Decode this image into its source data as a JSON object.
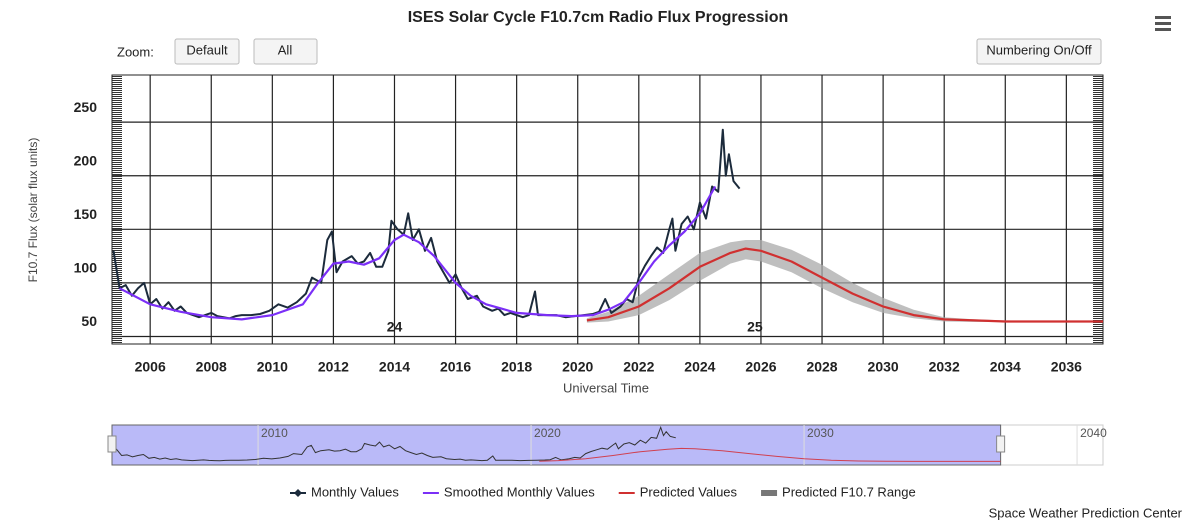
{
  "chart_data": {
    "type": "line",
    "title": "ISES Solar Cycle F10.7cm Radio Flux Progression",
    "zoom_label": "Zoom:",
    "buttons": [
      "Default",
      "All",
      "Numbering On/Off"
    ],
    "xlabel": "Universal Time",
    "ylabel": "F10.7 Flux (solar flux units)",
    "xlim": [
      2004.75,
      2037.2
    ],
    "xticks": [
      2006,
      2008,
      2010,
      2012,
      2014,
      2016,
      2018,
      2020,
      2022,
      2024,
      2026,
      2028,
      2030,
      2032,
      2034,
      2036
    ],
    "ylim": [
      43,
      294
    ],
    "yticks": [
      50,
      100,
      150,
      200,
      250
    ],
    "grid": true,
    "annotations": [
      {
        "text": "24",
        "x": 2014,
        "y": 58
      },
      {
        "text": "25",
        "x": 2025.8,
        "y": 58
      }
    ],
    "series": [
      {
        "name": "Monthly Values",
        "color": "#1c2b3c",
        "x": [
          2004.8,
          2005.0,
          2005.2,
          2005.4,
          2005.6,
          2005.8,
          2006.0,
          2006.2,
          2006.4,
          2006.6,
          2006.8,
          2007.0,
          2007.2,
          2007.4,
          2007.6,
          2007.8,
          2008.0,
          2008.2,
          2008.4,
          2008.6,
          2008.8,
          2009.0,
          2009.3,
          2009.6,
          2009.9,
          2010.2,
          2010.5,
          2010.8,
          2011.1,
          2011.3,
          2011.6,
          2011.8,
          2011.95,
          2012.1,
          2012.3,
          2012.6,
          2012.8,
          2013.0,
          2013.2,
          2013.4,
          2013.6,
          2013.8,
          2013.9,
          2014.1,
          2014.3,
          2014.45,
          2014.6,
          2014.8,
          2015.0,
          2015.2,
          2015.4,
          2015.6,
          2015.8,
          2016.0,
          2016.2,
          2016.4,
          2016.7,
          2016.9,
          2017.2,
          2017.4,
          2017.6,
          2017.8,
          2018.0,
          2018.2,
          2018.4,
          2018.6,
          2018.7,
          2019.0,
          2019.3,
          2019.6,
          2019.9,
          2020.2,
          2020.5,
          2020.7,
          2020.9,
          2021.1,
          2021.4,
          2021.6,
          2021.8,
          2022.0,
          2022.2,
          2022.4,
          2022.6,
          2022.8,
          2023.0,
          2023.1,
          2023.2,
          2023.4,
          2023.6,
          2023.8,
          2024.0,
          2024.2,
          2024.4,
          2024.6,
          2024.75,
          2024.85,
          2024.95,
          2025.1,
          2025.3
        ],
        "values": [
          130,
          95,
          98,
          88,
          95,
          100,
          80,
          85,
          76,
          82,
          74,
          78,
          72,
          70,
          68,
          70,
          72,
          69,
          68,
          67,
          69,
          70,
          70,
          71,
          74,
          80,
          77,
          82,
          90,
          105,
          100,
          140,
          148,
          110,
          120,
          125,
          118,
          120,
          128,
          115,
          115,
          130,
          158,
          150,
          145,
          165,
          140,
          150,
          130,
          142,
          120,
          110,
          100,
          108,
          95,
          85,
          88,
          78,
          74,
          76,
          70,
          72,
          70,
          68,
          70,
          92,
          70,
          70,
          70,
          68,
          69,
          70,
          71,
          73,
          85,
          72,
          78,
          85,
          82,
          105,
          116,
          125,
          133,
          128,
          150,
          160,
          130,
          155,
          162,
          150,
          175,
          160,
          190,
          185,
          243,
          200,
          220,
          195,
          188
        ]
      },
      {
        "name": "Smoothed Monthly Values",
        "color": "#7b2ff7",
        "x": [
          2005,
          2006,
          2007,
          2008,
          2009,
          2010,
          2011,
          2011.5,
          2012,
          2012.5,
          2013,
          2013.5,
          2014,
          2014.3,
          2014.8,
          2015.3,
          2016,
          2016.5,
          2017,
          2017.5,
          2018,
          2019,
          2019.8,
          2020.5,
          2021,
          2021.5,
          2022,
          2022.5,
          2023,
          2023.5,
          2024,
          2024.5
        ],
        "values": [
          95,
          80,
          73,
          68,
          66,
          70,
          80,
          100,
          118,
          120,
          117,
          123,
          140,
          145,
          138,
          125,
          100,
          88,
          80,
          76,
          72,
          70,
          69,
          70,
          75,
          82,
          100,
          120,
          135,
          148,
          165,
          190
        ]
      },
      {
        "name": "Predicted Values",
        "color": "#d03030",
        "x": [
          2020.3,
          2021,
          2022,
          2023,
          2024,
          2025,
          2025.5,
          2026,
          2027,
          2028,
          2029,
          2030,
          2031,
          2032,
          2033,
          2034,
          2035,
          2036,
          2037.2
        ],
        "values": [
          65,
          68,
          78,
          95,
          115,
          128,
          132,
          130,
          120,
          105,
          90,
          78,
          70,
          66,
          65,
          64,
          64,
          64,
          64
        ]
      },
      {
        "name": "Predicted F10.7 Range",
        "color": "#aaaaaa",
        "x": [
          2020.3,
          2021,
          2022,
          2023,
          2024,
          2025,
          2025.5,
          2026,
          2027,
          2028,
          2029,
          2030,
          2031,
          2032,
          2033,
          2034,
          2035,
          2036,
          2037.2
        ],
        "low": [
          63,
          64,
          70,
          84,
          102,
          118,
          122,
          120,
          110,
          95,
          82,
          72,
          67,
          64,
          63.5,
          63.5,
          63.5,
          63.5,
          63.5
        ],
        "high": [
          67,
          73,
          88,
          108,
          128,
          138,
          140,
          140,
          131,
          117,
          100,
          86,
          75,
          68,
          66,
          65,
          64.5,
          64.5,
          64.5
        ]
      }
    ],
    "navigator": {
      "xlim": [
        2004.65,
        2040.95
      ],
      "xticks": [
        2010,
        2020,
        2030,
        2040
      ],
      "ylim": [
        45,
        255
      ],
      "selection": [
        2004.65,
        2037.2
      ]
    },
    "credit": "Space Weather Prediction Center"
  }
}
